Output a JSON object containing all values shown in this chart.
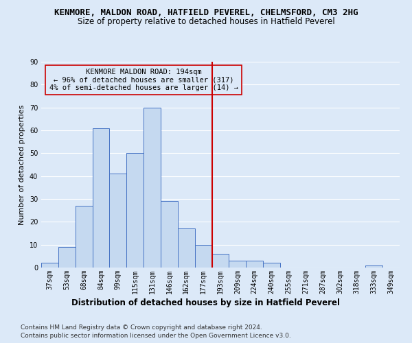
{
  "title": "KENMORE, MALDON ROAD, HATFIELD PEVEREL, CHELMSFORD, CM3 2HG",
  "subtitle": "Size of property relative to detached houses in Hatfield Peverel",
  "xlabel": "Distribution of detached houses by size in Hatfield Peverel",
  "ylabel": "Number of detached properties",
  "footer1": "Contains HM Land Registry data © Crown copyright and database right 2024.",
  "footer2": "Contains public sector information licensed under the Open Government Licence v3.0.",
  "annotation_line1": "KENMORE MALDON ROAD: 194sqm",
  "annotation_line2": "← 96% of detached houses are smaller (317)",
  "annotation_line3": "4% of semi-detached houses are larger (14) →",
  "bar_labels": [
    "37sqm",
    "53sqm",
    "68sqm",
    "84sqm",
    "99sqm",
    "115sqm",
    "131sqm",
    "146sqm",
    "162sqm",
    "177sqm",
    "193sqm",
    "209sqm",
    "224sqm",
    "240sqm",
    "255sqm",
    "271sqm",
    "287sqm",
    "302sqm",
    "318sqm",
    "333sqm",
    "349sqm"
  ],
  "bar_values": [
    2,
    9,
    27,
    61,
    41,
    50,
    70,
    29,
    17,
    10,
    6,
    3,
    3,
    2,
    0,
    0,
    0,
    0,
    0,
    1,
    0
  ],
  "bar_color": "#c5d9f0",
  "bar_edge_color": "#4472c4",
  "background_color": "#dce9f8",
  "grid_color": "#ffffff",
  "vline_x_index": 10,
  "vline_color": "#cc0000",
  "ylim": [
    0,
    90
  ],
  "yticks": [
    0,
    10,
    20,
    30,
    40,
    50,
    60,
    70,
    80,
    90
  ],
  "title_fontsize": 9,
  "subtitle_fontsize": 8.5,
  "xlabel_fontsize": 8.5,
  "ylabel_fontsize": 8,
  "tick_fontsize": 7,
  "annotation_fontsize": 7.5,
  "footer_fontsize": 6.5
}
